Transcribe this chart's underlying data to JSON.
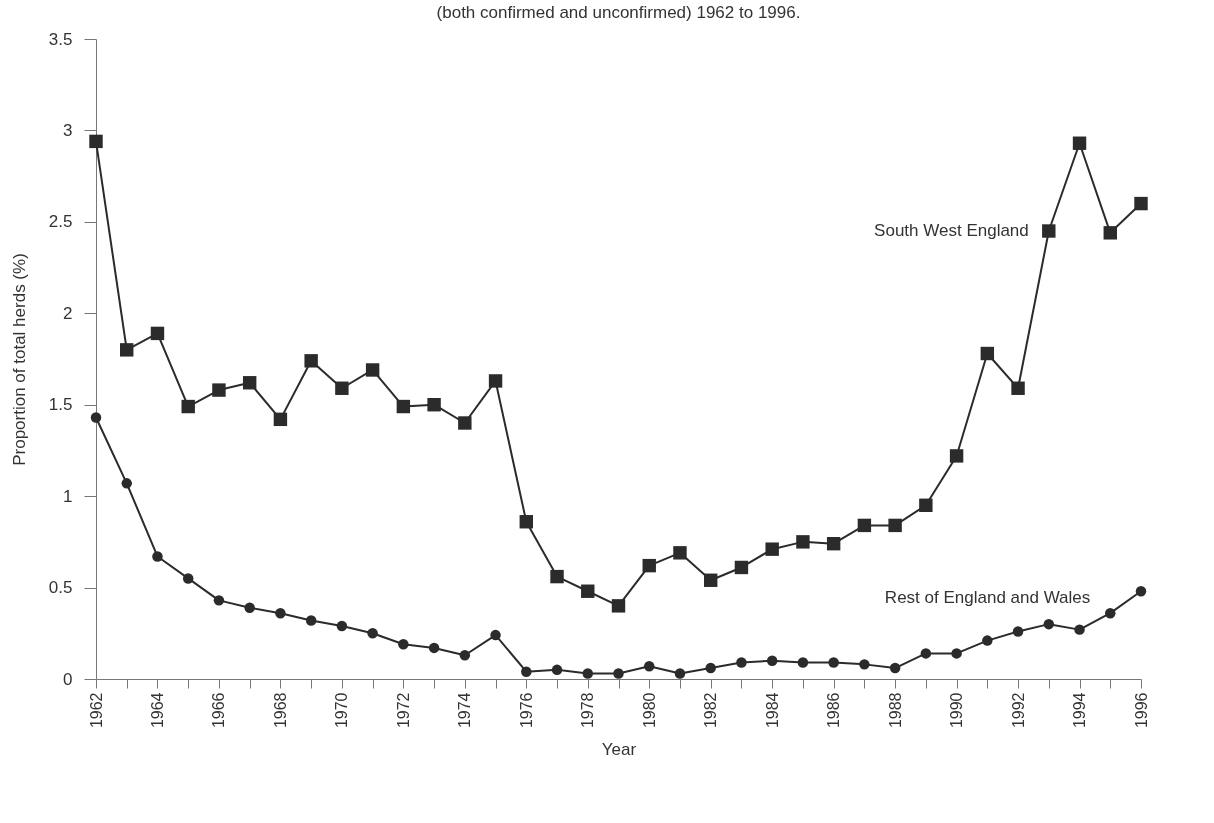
{
  "chart_data": {
    "type": "line",
    "title": "(both confirmed and unconfirmed) 1962 to 1996.",
    "xlabel": "Year",
    "ylabel": "Proportion of total herds (%)",
    "x": [
      1962,
      1963,
      1964,
      1965,
      1966,
      1967,
      1968,
      1969,
      1970,
      1971,
      1972,
      1973,
      1974,
      1975,
      1976,
      1977,
      1978,
      1979,
      1980,
      1981,
      1982,
      1983,
      1984,
      1985,
      1986,
      1987,
      1988,
      1989,
      1990,
      1991,
      1992,
      1993,
      1994,
      1995,
      1996
    ],
    "series": [
      {
        "name": "South West England",
        "color": "#2b2b2b",
        "marker": "square",
        "values": [
          2.94,
          1.8,
          1.89,
          1.49,
          1.58,
          1.62,
          1.42,
          1.74,
          1.59,
          1.69,
          1.49,
          1.5,
          1.4,
          1.63,
          0.86,
          0.56,
          0.48,
          0.4,
          0.62,
          0.69,
          0.54,
          0.61,
          0.71,
          0.75,
          0.74,
          0.84,
          0.84,
          0.95,
          1.22,
          1.78,
          1.59,
          2.45,
          2.93,
          2.44,
          2.6
        ]
      },
      {
        "name": "Rest of England and Wales",
        "color": "#2b2b2b",
        "marker": "circle",
        "values": [
          1.43,
          1.07,
          0.67,
          0.55,
          0.43,
          0.39,
          0.36,
          0.32,
          0.29,
          0.25,
          0.19,
          0.17,
          0.13,
          0.24,
          0.04,
          0.05,
          0.03,
          0.03,
          0.07,
          0.03,
          0.06,
          0.09,
          0.1,
          0.09,
          0.09,
          0.08,
          0.06,
          0.14,
          0.14,
          0.21,
          0.26,
          0.3,
          0.27,
          0.36,
          0.48
        ]
      }
    ],
    "xlim": [
      1962,
      1996
    ],
    "xticks": [
      1962,
      {
        "value": 1963,
        "label": null
      },
      1964,
      {
        "value": 1965,
        "label": null
      },
      1966,
      {
        "value": 1967,
        "label": null
      },
      1968,
      {
        "value": 1969,
        "label": null
      },
      1970,
      {
        "value": 1971,
        "label": null
      },
      1972,
      {
        "value": 1973,
        "label": null
      },
      1974,
      {
        "value": 1975,
        "label": null
      },
      1976,
      {
        "value": 1977,
        "label": null
      },
      1978,
      {
        "value": 1979,
        "label": null
      },
      1980,
      {
        "value": 1981,
        "label": null
      },
      1982,
      {
        "value": 1983,
        "label": null
      },
      1984,
      {
        "value": 1985,
        "label": null
      },
      1986,
      {
        "value": 1987,
        "label": null
      },
      1988,
      {
        "value": 1989,
        "label": null
      },
      1990,
      {
        "value": 1991,
        "label": null
      },
      1992,
      {
        "value": 1993,
        "label": null
      },
      1994,
      {
        "value": 1995,
        "label": null
      },
      1996
    ],
    "ylim": [
      0,
      3.5
    ],
    "yticks": [
      0,
      0.5,
      1,
      1.5,
      2,
      2.5,
      3,
      3.5
    ],
    "grid": false,
    "legend": false,
    "line_style": "solid"
  }
}
